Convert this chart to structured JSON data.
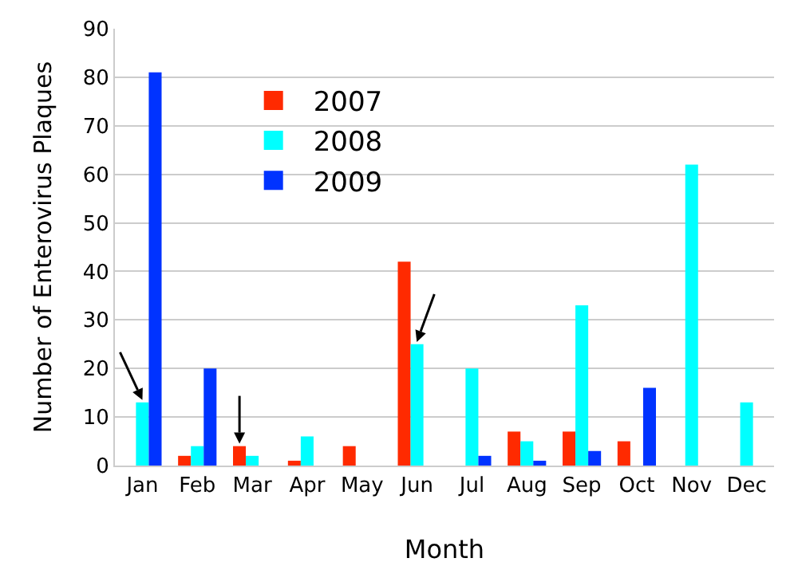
{
  "chart_data": {
    "type": "bar",
    "xlabel": "Month",
    "ylabel": "Number of Enterovirus Plaques",
    "categories": [
      "Jan",
      "Feb",
      "Mar",
      "Apr",
      "May",
      "Jun",
      "Jul",
      "Aug",
      "Sep",
      "Oct",
      "Nov",
      "Dec"
    ],
    "series": [
      {
        "name": "2007",
        "color": "#ff2a00",
        "values": [
          0,
          2,
          4,
          1,
          4,
          42,
          0,
          7,
          7,
          5,
          0,
          0
        ]
      },
      {
        "name": "2008",
        "color": "#00ffff",
        "values": [
          13,
          4,
          2,
          6,
          0,
          25,
          20,
          5,
          33,
          0,
          62,
          13
        ]
      },
      {
        "name": "2009",
        "color": "#0033ff",
        "values": [
          81,
          20,
          0,
          0,
          0,
          0,
          2,
          1,
          3,
          16,
          0,
          0
        ]
      }
    ],
    "ylim": [
      0,
      90
    ],
    "yticks": [
      0,
      10,
      20,
      30,
      40,
      50,
      60,
      70,
      80,
      90
    ],
    "grid": "y",
    "legend": "top left"
  }
}
